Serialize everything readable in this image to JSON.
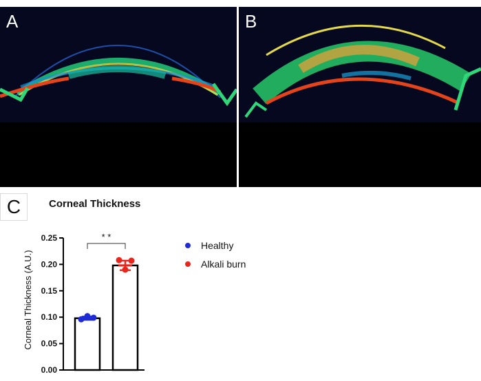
{
  "panels": {
    "a_label": "A",
    "b_label": "B",
    "c_label": "C"
  },
  "chart_data": {
    "type": "bar",
    "title": "Corneal Thickness",
    "ylabel": "Corneal Thickness (A.U.)",
    "xlabel": "",
    "ylim": [
      0,
      0.25
    ],
    "yticks": [
      "0.00",
      "0.05",
      "0.10",
      "0.15",
      "0.20",
      "0.25"
    ],
    "categories": [
      "Healthy",
      "Alkali burn"
    ],
    "values": [
      0.098,
      0.198
    ],
    "errors": [
      0.003,
      0.009
    ],
    "points": [
      [
        0.096,
        0.102,
        0.099
      ],
      [
        0.208,
        0.19,
        0.207
      ]
    ],
    "colors": [
      "#1f2bd6",
      "#e8261c"
    ],
    "significance": "* *",
    "legend_position": "right"
  }
}
